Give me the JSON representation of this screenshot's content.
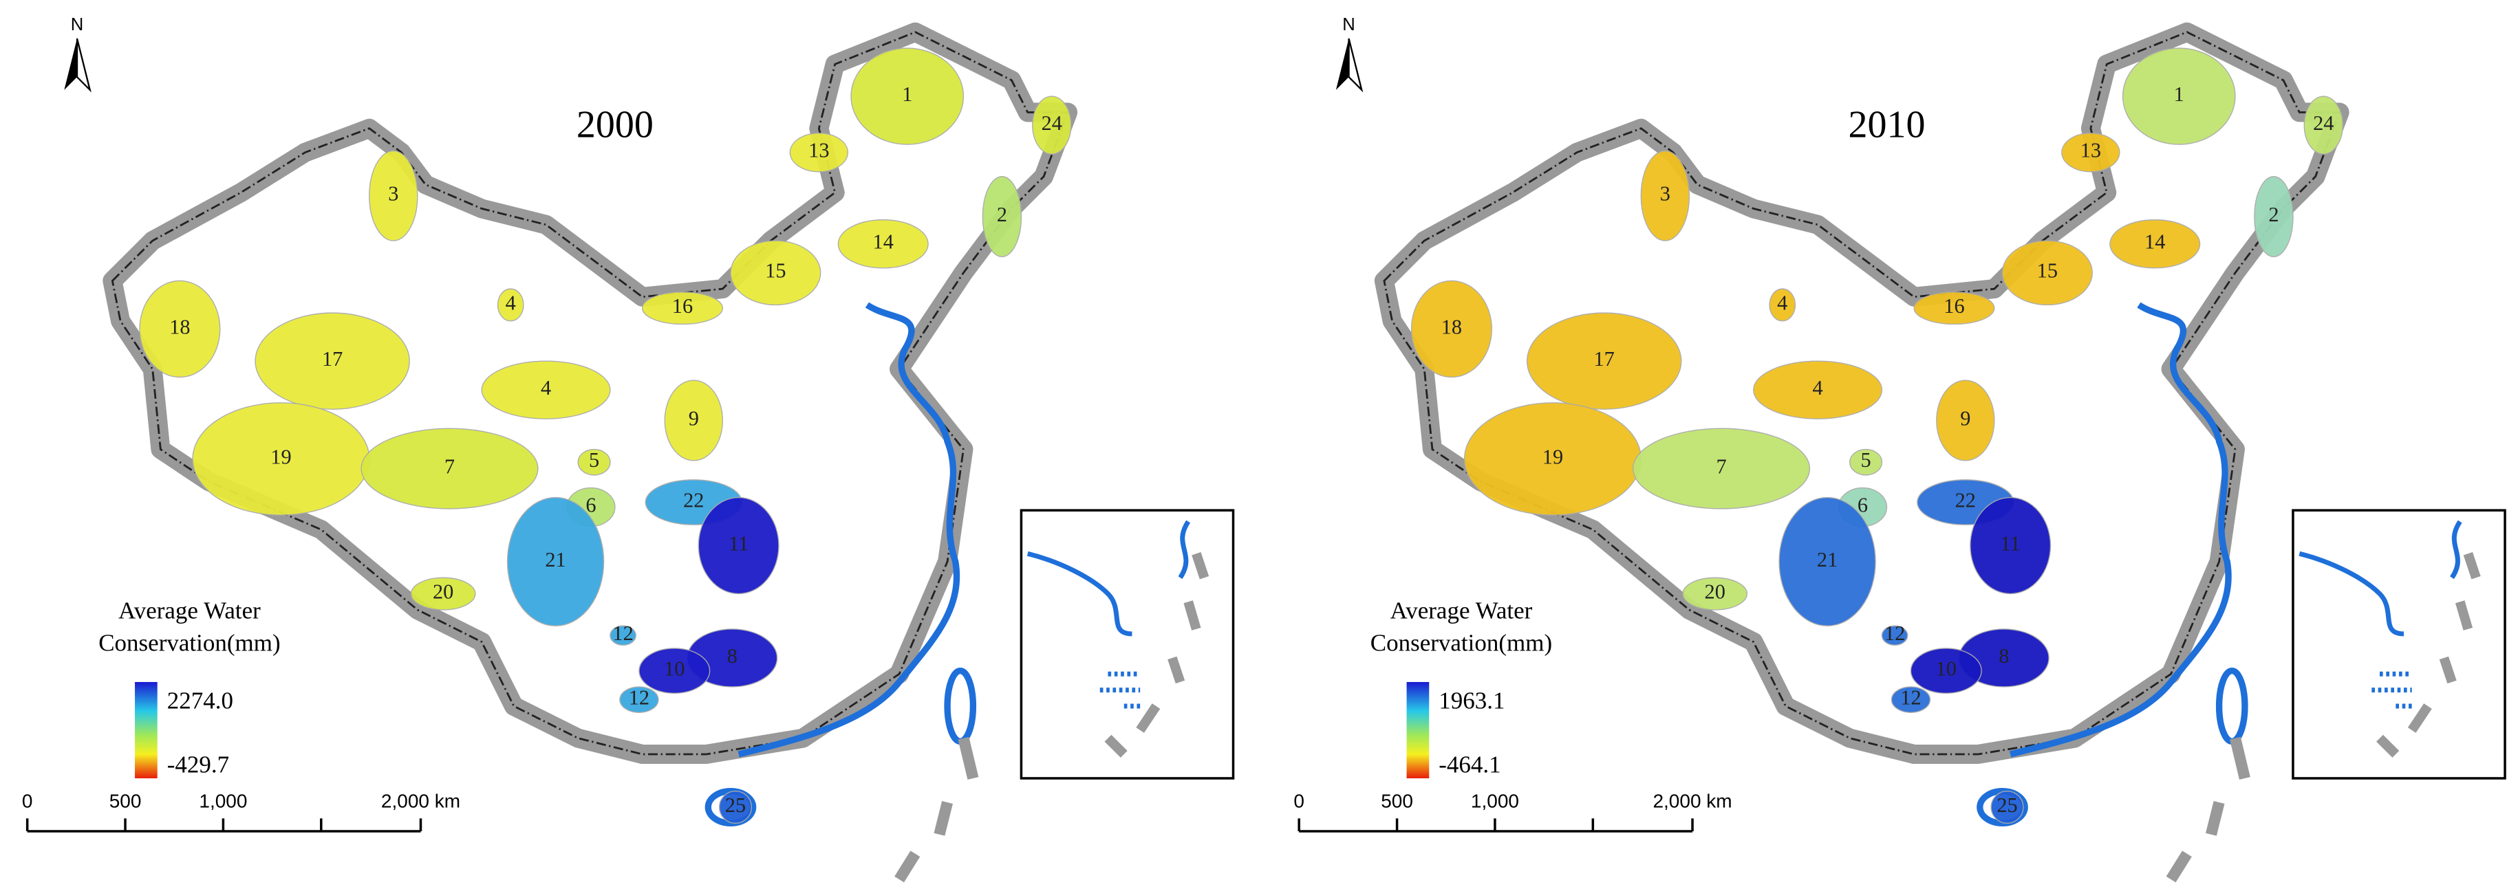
{
  "north": "N",
  "scale_bar": {
    "labels": [
      "0",
      "500",
      "1,000",
      "2,000 km"
    ]
  },
  "maps": [
    {
      "year": "2000",
      "legend": {
        "title": [
          "Average Water",
          "Conservation(mm)"
        ],
        "max": "2274.0",
        "min": "-429.7"
      },
      "regions": [
        "1",
        "24",
        "13",
        "3",
        "2",
        "14",
        "15",
        "16",
        "4",
        "18",
        "17",
        "4",
        "9",
        "5",
        "19",
        "7",
        "22",
        "6",
        "11",
        "21",
        "20",
        "12",
        "8",
        "10",
        "12",
        "25"
      ]
    },
    {
      "year": "2010",
      "legend": {
        "title": [
          "Average Water",
          "Conservation(mm)"
        ],
        "max": "1963.1",
        "min": "-464.1"
      },
      "regions": [
        "1",
        "24",
        "13",
        "3",
        "2",
        "14",
        "15",
        "16",
        "4",
        "18",
        "17",
        "4",
        "9",
        "5",
        "19",
        "7",
        "22",
        "6",
        "11",
        "21",
        "20",
        "12",
        "8",
        "10",
        "12",
        "25"
      ]
    }
  ]
}
